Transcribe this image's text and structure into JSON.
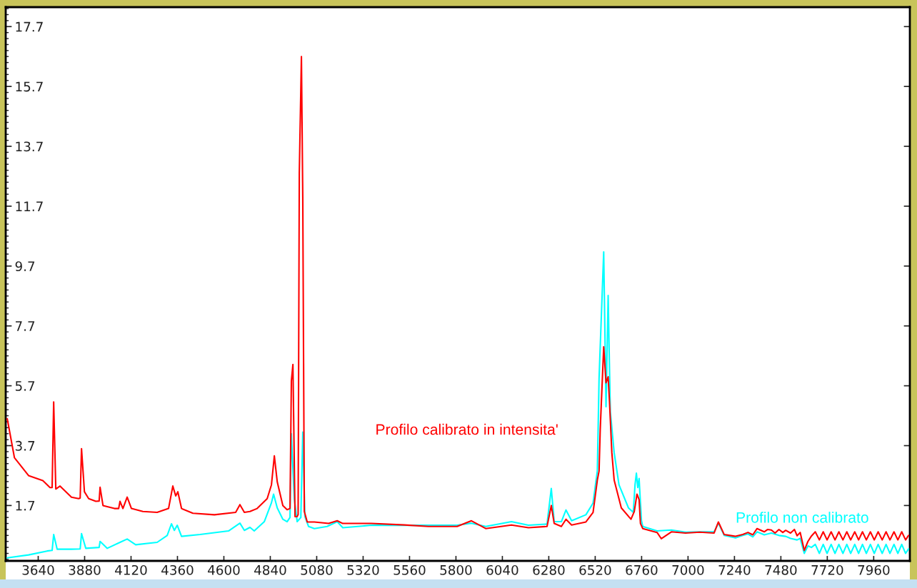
{
  "chart_data": {
    "type": "line",
    "xlim": [
      3472,
      8147
    ],
    "xticks": [
      3640,
      3880,
      4120,
      4360,
      4600,
      4840,
      5080,
      5320,
      5560,
      5800,
      6040,
      6280,
      6520,
      6760,
      7000,
      7240,
      7480,
      7720,
      7960
    ],
    "ylim": [
      -0.15,
      18.35
    ],
    "yticks": [
      1.7,
      3.7,
      5.7,
      7.7,
      9.7,
      11.7,
      13.7,
      15.7,
      17.7
    ],
    "grid": false,
    "series": [
      {
        "name": "Profilo calibrato in intensita'",
        "color": "#ff0000",
        "x": [
          3480,
          3517,
          3590,
          3664,
          3701,
          3712,
          3720,
          3731,
          3753,
          3812,
          3849,
          3857,
          3864,
          3879,
          3901,
          3938,
          3955,
          3960,
          3975,
          4034,
          4056,
          4063,
          4078,
          4100,
          4122,
          4181,
          4255,
          4314,
          4336,
          4351,
          4362,
          4381,
          4440,
          4551,
          4661,
          4683,
          4706,
          4735,
          4772,
          4824,
          4846,
          4861,
          4876,
          4905,
          4927,
          4942,
          4949,
          4957,
          4968,
          4979,
          4984,
          4990,
          5001,
          5008,
          5016,
          5031,
          5068,
          5142,
          5186,
          5215,
          5363,
          5533,
          5658,
          5806,
          5880,
          5954,
          6087,
          6175,
          6271,
          6293,
          6308,
          6345,
          6369,
          6398,
          6472,
          6509,
          6531,
          6540,
          6546,
          6564,
          6576,
          6587,
          6594,
          6606,
          6618,
          6655,
          6705,
          6722,
          6736,
          6747,
          6754,
          6766,
          6840,
          6862,
          6914,
          6987,
          7061,
          7135,
          7157,
          7187,
          7246,
          7283,
          7310,
          7335,
          7357,
          7394,
          7412,
          7431,
          7450,
          7470,
          7490,
          7505,
          7530,
          7550,
          7564,
          7580,
          7601,
          7620,
          7638,
          7658,
          7679,
          7699,
          7719,
          7740,
          7760,
          7780,
          7801,
          7821,
          7841,
          7862,
          7882,
          7902,
          7922,
          7943,
          7963,
          7983,
          8004,
          8024,
          8044,
          8065,
          8085,
          8105,
          8125,
          8140
        ],
        "values": [
          4.6,
          3.3,
          2.7,
          2.53,
          2.3,
          2.3,
          5.16,
          2.25,
          2.35,
          1.98,
          1.93,
          1.95,
          3.6,
          2.16,
          1.93,
          1.84,
          1.85,
          2.31,
          1.7,
          1.6,
          1.6,
          1.84,
          1.6,
          1.98,
          1.6,
          1.5,
          1.47,
          1.6,
          2.35,
          2.02,
          2.16,
          1.6,
          1.44,
          1.39,
          1.47,
          1.73,
          1.47,
          1.5,
          1.6,
          1.93,
          2.39,
          3.36,
          2.49,
          1.7,
          1.56,
          1.6,
          5.86,
          6.41,
          1.33,
          1.33,
          1.4,
          12.8,
          16.7,
          12.0,
          1.5,
          1.15,
          1.15,
          1.1,
          1.19,
          1.1,
          1.1,
          1.05,
          1.0,
          1.0,
          1.19,
          0.93,
          1.05,
          0.96,
          1.0,
          1.7,
          1.1,
          1.0,
          1.24,
          1.05,
          1.15,
          1.47,
          2.55,
          2.85,
          4.24,
          7.0,
          5.8,
          6.0,
          5.16,
          3.47,
          2.55,
          1.62,
          1.24,
          1.5,
          2.08,
          1.9,
          1.1,
          0.93,
          0.8,
          0.59,
          0.82,
          0.78,
          0.81,
          0.78,
          1.15,
          0.73,
          0.67,
          0.73,
          0.8,
          0.72,
          0.93,
          0.82,
          0.9,
          0.88,
          0.78,
          0.9,
          0.8,
          0.87,
          0.78,
          0.9,
          0.69,
          0.8,
          0.2,
          0.5,
          0.68,
          0.82,
          0.55,
          0.82,
          0.55,
          0.82,
          0.55,
          0.82,
          0.55,
          0.82,
          0.55,
          0.82,
          0.55,
          0.82,
          0.55,
          0.82,
          0.55,
          0.82,
          0.55,
          0.82,
          0.55,
          0.82,
          0.55,
          0.82,
          0.55,
          0.7
        ]
      },
      {
        "name": "Profilo non calibrato",
        "color": "#00ffff",
        "x": [
          3480,
          3590,
          3686,
          3712,
          3720,
          3738,
          3812,
          3857,
          3864,
          3886,
          3955,
          3960,
          3997,
          4063,
          4100,
          4144,
          4255,
          4307,
          4329,
          4344,
          4359,
          4381,
          4477,
          4624,
          4683,
          4706,
          4735,
          4757,
          4809,
          4846,
          4857,
          4876,
          4905,
          4927,
          4942,
          4949,
          4964,
          4979,
          4998,
          5008,
          5019,
          5038,
          5068,
          5134,
          5186,
          5215,
          5363,
          5658,
          5806,
          5880,
          5954,
          6087,
          6175,
          6271,
          6293,
          6308,
          6345,
          6369,
          6398,
          6472,
          6509,
          6531,
          6540,
          6564,
          6576,
          6587,
          6598,
          6618,
          6643,
          6692,
          6717,
          6726,
          6733,
          6740,
          6747,
          6759,
          6766,
          6840,
          6914,
          6987,
          7061,
          7135,
          7157,
          7187,
          7246,
          7283,
          7310,
          7335,
          7357,
          7394,
          7431,
          7470,
          7505,
          7530,
          7564,
          7580,
          7601,
          7620,
          7638,
          7658,
          7679,
          7699,
          7719,
          7740,
          7760,
          7780,
          7801,
          7821,
          7841,
          7862,
          7882,
          7902,
          7922,
          7943,
          7963,
          7983,
          8004,
          8024,
          8044,
          8065,
          8085,
          8105,
          8125,
          8140
        ],
        "values": [
          -0.05,
          0.05,
          0.18,
          0.2,
          0.73,
          0.24,
          0.24,
          0.25,
          0.76,
          0.27,
          0.3,
          0.5,
          0.27,
          0.47,
          0.58,
          0.39,
          0.47,
          0.7,
          1.09,
          0.87,
          1.04,
          0.67,
          0.73,
          0.85,
          1.11,
          0.87,
          0.97,
          0.85,
          1.16,
          1.79,
          2.08,
          1.62,
          1.24,
          1.16,
          1.3,
          4.1,
          1.93,
          1.16,
          1.3,
          4.15,
          1.33,
          1.0,
          0.93,
          1.0,
          1.16,
          0.96,
          1.04,
          1.04,
          1.04,
          1.11,
          1.0,
          1.16,
          1.04,
          1.08,
          2.27,
          1.16,
          1.16,
          1.55,
          1.19,
          1.39,
          1.78,
          2.85,
          5.95,
          10.17,
          5.0,
          8.72,
          4.85,
          3.47,
          2.39,
          1.62,
          1.47,
          2.4,
          2.78,
          2.3,
          2.6,
          1.2,
          1.0,
          0.85,
          0.88,
          0.81,
          0.82,
          0.82,
          1.11,
          0.7,
          0.62,
          0.7,
          0.75,
          0.65,
          0.82,
          0.72,
          0.78,
          0.7,
          0.67,
          0.6,
          0.55,
          0.6,
          0.1,
          0.35,
          0.3,
          0.4,
          0.1,
          0.4,
          0.1,
          0.4,
          0.1,
          0.4,
          0.1,
          0.4,
          0.1,
          0.4,
          0.1,
          0.4,
          0.1,
          0.4,
          0.1,
          0.4,
          0.1,
          0.4,
          0.1,
          0.4,
          0.1,
          0.4,
          0.1,
          0.25
        ]
      }
    ]
  }
}
